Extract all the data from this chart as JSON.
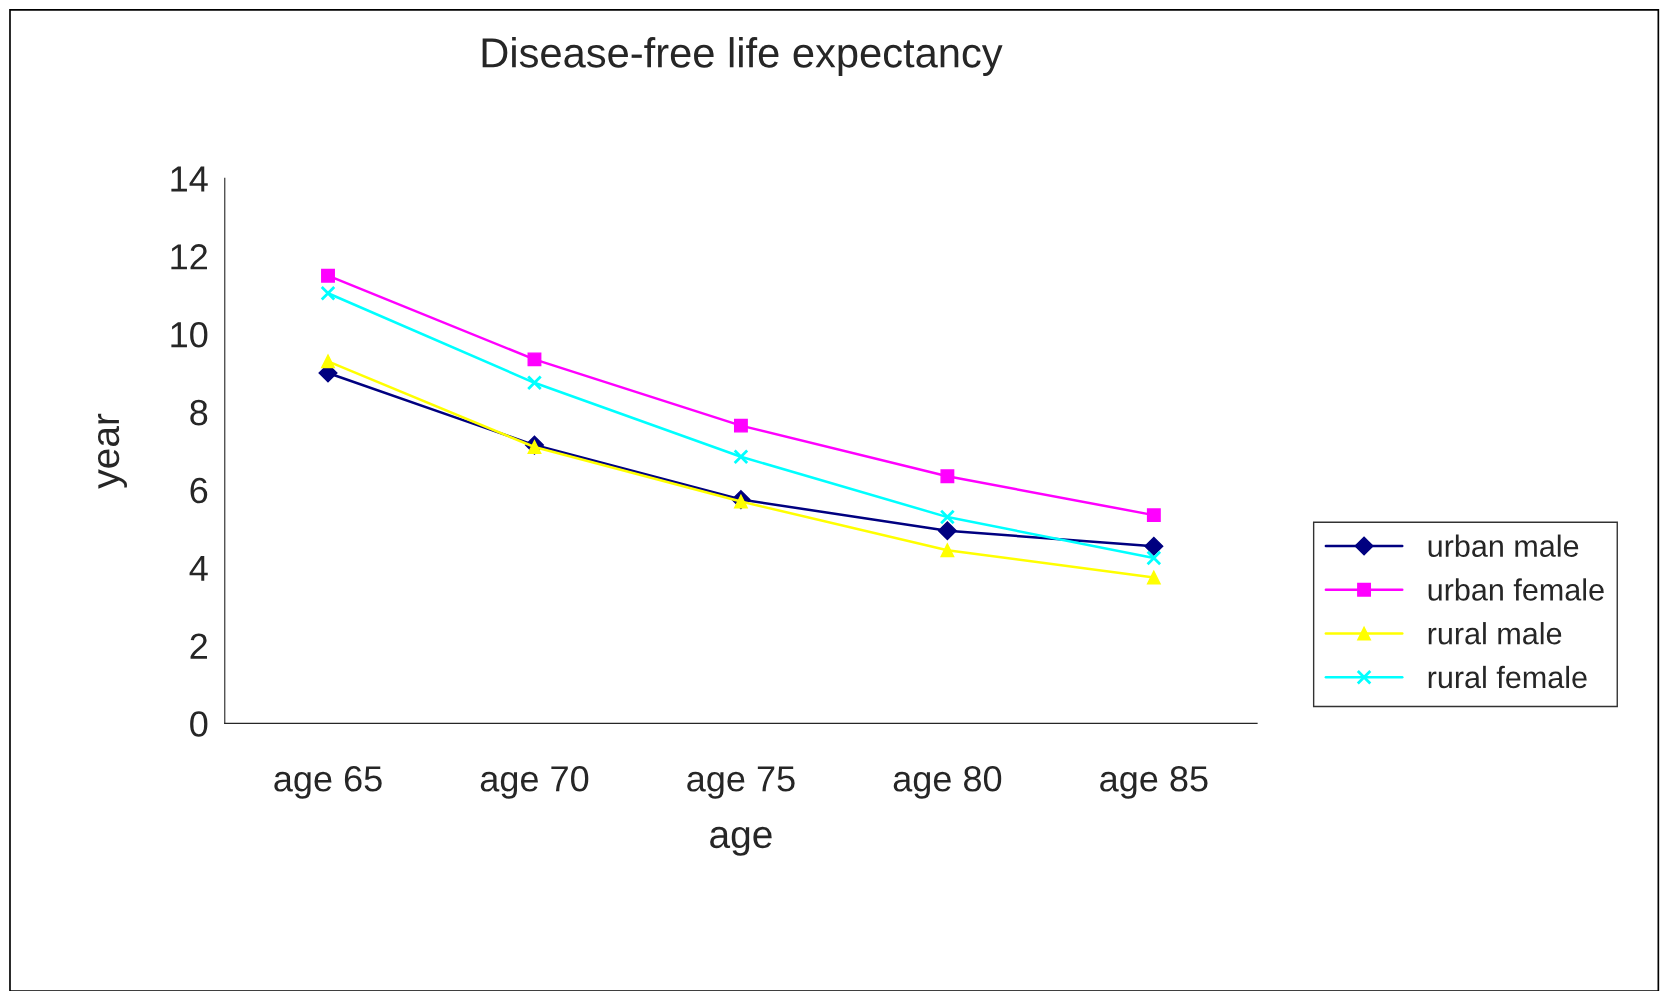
{
  "chart_data": {
    "type": "line",
    "title": "Disease-free life expectancy",
    "xlabel": "age",
    "ylabel": "year",
    "categories": [
      "age 65",
      "age 70",
      "age 75",
      "age 80",
      "age 85"
    ],
    "series": [
      {
        "name": "urban male",
        "color": "#000080",
        "marker": "diamond",
        "values": [
          9.0,
          7.15,
          5.75,
          4.95,
          4.55
        ]
      },
      {
        "name": "urban female",
        "color": "#ff00ff",
        "marker": "square",
        "values": [
          11.5,
          9.35,
          7.65,
          6.35,
          5.35
        ]
      },
      {
        "name": "rural male",
        "color": "#ffff00",
        "marker": "triangle",
        "values": [
          9.3,
          7.1,
          5.7,
          4.45,
          3.75
        ]
      },
      {
        "name": "rural female",
        "color": "#00ffff",
        "marker": "cross",
        "values": [
          11.05,
          8.75,
          6.85,
          5.3,
          4.25
        ]
      }
    ],
    "ylim": [
      0,
      14
    ],
    "yticks": [
      0,
      2,
      4,
      6,
      8,
      10,
      12,
      14
    ],
    "grid": false,
    "legend": "right"
  }
}
